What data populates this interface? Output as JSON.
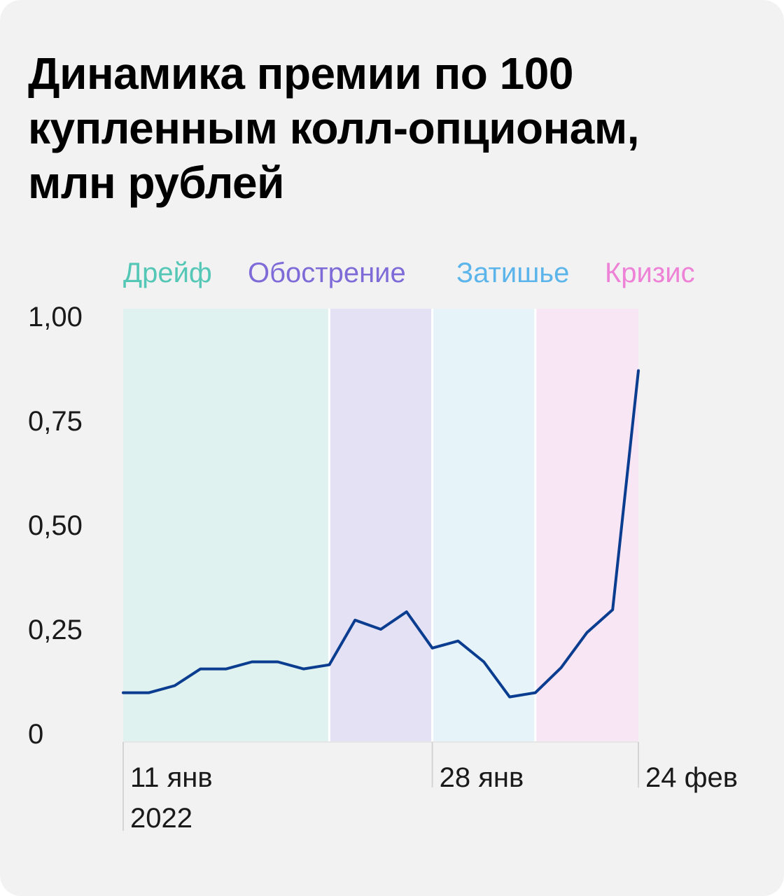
{
  "title_lines": [
    "Динамика премии по 100",
    "купленным колл-опционам,",
    "млн рублей"
  ],
  "chart_data": {
    "type": "line",
    "title": "Динамика премии по 100 купленным колл-опционам, млн рублей",
    "xlabel": "",
    "ylabel": "",
    "ylim": [
      0,
      1
    ],
    "yticks": [
      {
        "value": 0,
        "label": "0"
      },
      {
        "value": 0.25,
        "label": "0,25"
      },
      {
        "value": 0.5,
        "label": "0,50"
      },
      {
        "value": 0.75,
        "label": "0,75"
      },
      {
        "value": 1.0,
        "label": "1,00"
      }
    ],
    "xticks": [
      {
        "index": 0,
        "label": "11 янв",
        "sublabel": "2022"
      },
      {
        "index": 12,
        "label": "28 янв",
        "sublabel": ""
      },
      {
        "index": 20,
        "label": "24 фев",
        "sublabel": ""
      }
    ],
    "regimes": [
      {
        "name": "Дрейф",
        "start": 0,
        "end": 8,
        "color": "#55c7b6",
        "fill": "#e0f2ef"
      },
      {
        "name": "Обострение",
        "start": 8,
        "end": 12,
        "color": "#7f6bd8",
        "fill": "#e5e1f5"
      },
      {
        "name": "Затишье",
        "start": 12,
        "end": 16,
        "color": "#5bb5ea",
        "fill": "#e6f3f9"
      },
      {
        "name": "Кризис",
        "start": 16,
        "end": 20,
        "color": "#ee82d6",
        "fill": "#f8e6f5"
      }
    ],
    "series": [
      {
        "color": "#0a3d8f",
        "values": [
          0.098,
          0.098,
          0.115,
          0.155,
          0.155,
          0.172,
          0.172,
          0.155,
          0.165,
          0.272,
          0.25,
          0.292,
          0.205,
          0.222,
          0.172,
          0.088,
          0.098,
          0.158,
          0.242,
          0.297,
          0.87
        ]
      }
    ],
    "grid": false,
    "legend": "top"
  }
}
